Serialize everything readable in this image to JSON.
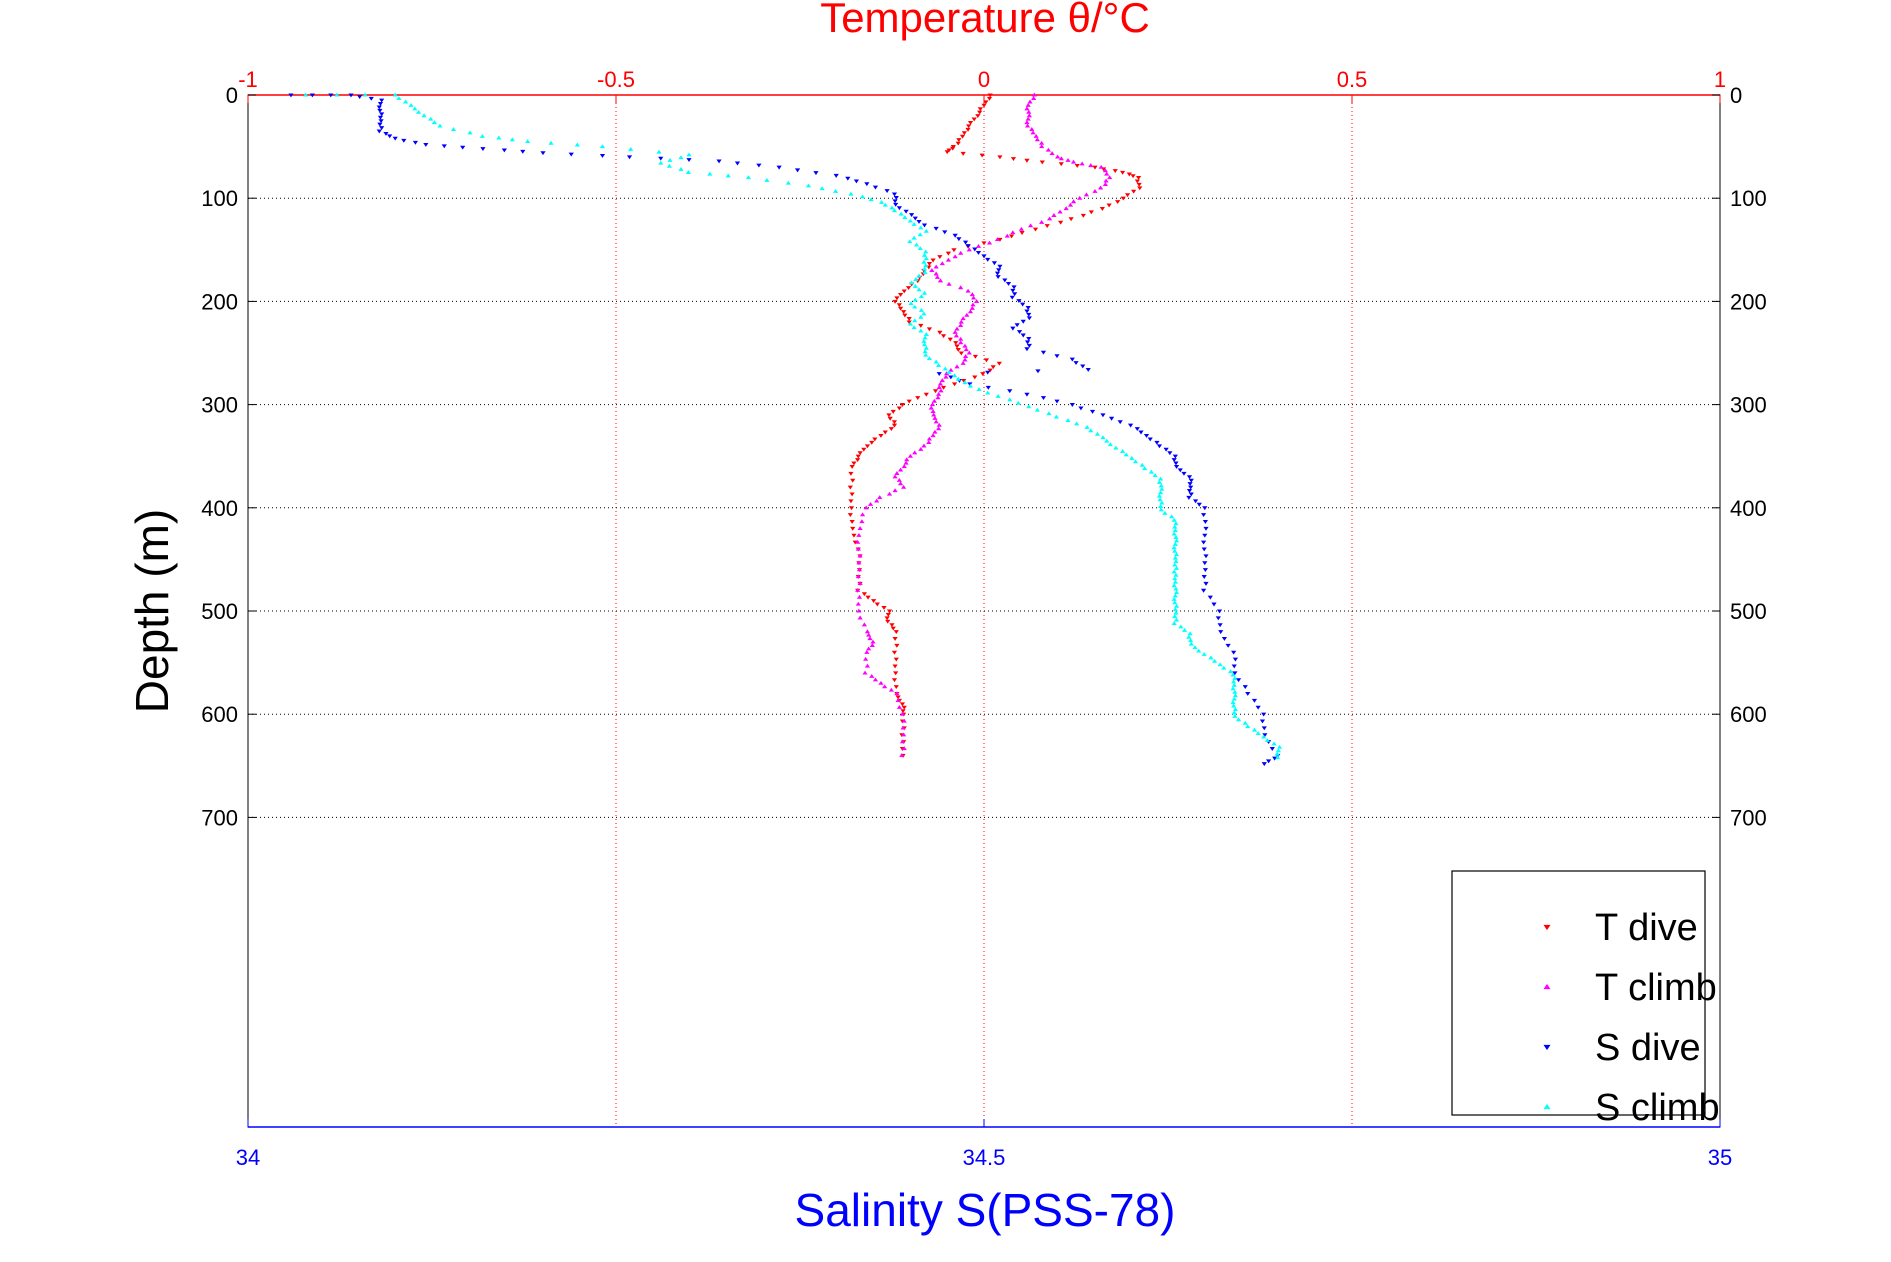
{
  "chart_data": {
    "type": "scatter",
    "title": "Temperature θ/°C",
    "top_axis": {
      "label": "Temperature θ/°C",
      "range": [
        -1,
        1
      ],
      "ticks": [
        -1,
        -0.5,
        0,
        0.5,
        1
      ],
      "tick_labels": [
        "-1",
        "-0.5",
        "0",
        "0.5",
        "1"
      ],
      "color": "#ff0000",
      "grid": true
    },
    "bottom_axis": {
      "label": "Salinity S(PSS-78)",
      "range": [
        34,
        35
      ],
      "ticks": [
        34,
        34.5,
        35
      ],
      "tick_labels": [
        "34",
        "34.5",
        "35"
      ],
      "color": "#0000ff"
    },
    "y_axis": {
      "label": "Depth (m)",
      "range": [
        0,
        1000
      ],
      "reversed": true,
      "ticks": [
        0,
        100,
        200,
        300,
        400,
        500,
        600,
        700
      ],
      "tick_labels": [
        "0",
        "100",
        "200",
        "300",
        "400",
        "500",
        "600",
        "700"
      ],
      "grid": true
    },
    "legend": {
      "position": "bottom-right"
    },
    "series": [
      {
        "name": "T dive",
        "axis": "top",
        "marker": "triangle-down",
        "color": "#ff0000",
        "points": [
          [
            0.01,
            0
          ],
          [
            0.0,
            10
          ],
          [
            -0.01,
            20
          ],
          [
            -0.02,
            30
          ],
          [
            -0.03,
            40
          ],
          [
            -0.04,
            50
          ],
          [
            -0.05,
            55
          ],
          [
            0.02,
            60
          ],
          [
            0.08,
            65
          ],
          [
            0.15,
            70
          ],
          [
            0.19,
            75
          ],
          [
            0.21,
            80
          ],
          [
            0.21,
            90
          ],
          [
            0.19,
            100
          ],
          [
            0.16,
            110
          ],
          [
            0.12,
            120
          ],
          [
            0.07,
            130
          ],
          [
            0.02,
            140
          ],
          [
            -0.04,
            150
          ],
          [
            -0.07,
            160
          ],
          [
            -0.08,
            170
          ],
          [
            -0.09,
            180
          ],
          [
            -0.11,
            190
          ],
          [
            -0.12,
            200
          ],
          [
            -0.11,
            210
          ],
          [
            -0.1,
            220
          ],
          [
            -0.06,
            230
          ],
          [
            -0.04,
            240
          ],
          [
            -0.03,
            250
          ],
          [
            0.02,
            260
          ],
          [
            0.0,
            270
          ],
          [
            -0.04,
            280
          ],
          [
            -0.08,
            290
          ],
          [
            -0.11,
            300
          ],
          [
            -0.13,
            310
          ],
          [
            -0.12,
            320
          ],
          [
            -0.14,
            330
          ],
          [
            -0.16,
            340
          ],
          [
            -0.17,
            350
          ],
          [
            -0.18,
            360
          ],
          [
            -0.18,
            380
          ],
          [
            -0.18,
            400
          ],
          [
            -0.18,
            420
          ],
          [
            -0.17,
            440
          ],
          [
            -0.17,
            460
          ],
          [
            -0.17,
            480
          ],
          [
            -0.15,
            490
          ],
          [
            -0.13,
            500
          ],
          [
            -0.13,
            510
          ],
          [
            -0.12,
            520
          ],
          [
            -0.12,
            540
          ],
          [
            -0.12,
            560
          ],
          [
            -0.12,
            580
          ],
          [
            -0.11,
            590
          ],
          [
            -0.11,
            600
          ],
          [
            -0.11,
            620
          ],
          [
            -0.11,
            640
          ]
        ]
      },
      {
        "name": "T climb",
        "axis": "top",
        "marker": "triangle-up",
        "color": "#ff00ff",
        "points": [
          [
            0.07,
            0
          ],
          [
            0.06,
            10
          ],
          [
            0.06,
            20
          ],
          [
            0.06,
            30
          ],
          [
            0.07,
            40
          ],
          [
            0.08,
            50
          ],
          [
            0.1,
            60
          ],
          [
            0.12,
            65
          ],
          [
            0.16,
            70
          ],
          [
            0.17,
            80
          ],
          [
            0.16,
            90
          ],
          [
            0.13,
            100
          ],
          [
            0.11,
            110
          ],
          [
            0.09,
            120
          ],
          [
            0.05,
            130
          ],
          [
            0.02,
            140
          ],
          [
            -0.02,
            150
          ],
          [
            -0.05,
            160
          ],
          [
            -0.07,
            170
          ],
          [
            -0.06,
            180
          ],
          [
            -0.02,
            190
          ],
          [
            -0.01,
            200
          ],
          [
            -0.02,
            210
          ],
          [
            -0.03,
            220
          ],
          [
            -0.04,
            230
          ],
          [
            -0.03,
            240
          ],
          [
            -0.02,
            250
          ],
          [
            -0.03,
            260
          ],
          [
            -0.05,
            270
          ],
          [
            -0.06,
            280
          ],
          [
            -0.06,
            290
          ],
          [
            -0.07,
            300
          ],
          [
            -0.07,
            310
          ],
          [
            -0.06,
            320
          ],
          [
            -0.07,
            330
          ],
          [
            -0.08,
            340
          ],
          [
            -0.1,
            350
          ],
          [
            -0.11,
            360
          ],
          [
            -0.12,
            370
          ],
          [
            -0.11,
            380
          ],
          [
            -0.14,
            390
          ],
          [
            -0.16,
            400
          ],
          [
            -0.17,
            420
          ],
          [
            -0.17,
            440
          ],
          [
            -0.17,
            460
          ],
          [
            -0.17,
            480
          ],
          [
            -0.17,
            500
          ],
          [
            -0.16,
            520
          ],
          [
            -0.15,
            530
          ],
          [
            -0.16,
            540
          ],
          [
            -0.16,
            560
          ],
          [
            -0.14,
            570
          ],
          [
            -0.12,
            580
          ],
          [
            -0.11,
            600
          ],
          [
            -0.11,
            620
          ],
          [
            -0.11,
            640
          ]
        ]
      },
      {
        "name": "S dive",
        "axis": "bottom",
        "marker": "triangle-down",
        "color": "#0000ff",
        "points": [
          [
            34.03,
            0
          ],
          [
            34.07,
            0
          ],
          [
            34.09,
            5
          ],
          [
            34.09,
            15
          ],
          [
            34.09,
            25
          ],
          [
            34.09,
            35
          ],
          [
            34.1,
            42
          ],
          [
            34.12,
            48
          ],
          [
            34.16,
            52
          ],
          [
            34.2,
            56
          ],
          [
            34.26,
            60
          ],
          [
            34.32,
            64
          ],
          [
            34.36,
            70
          ],
          [
            34.4,
            78
          ],
          [
            34.42,
            86
          ],
          [
            34.44,
            96
          ],
          [
            34.44,
            106
          ],
          [
            34.45,
            116
          ],
          [
            34.46,
            126
          ],
          [
            34.48,
            136
          ],
          [
            34.49,
            146
          ],
          [
            34.5,
            156
          ],
          [
            34.51,
            166
          ],
          [
            34.51,
            176
          ],
          [
            34.52,
            186
          ],
          [
            34.52,
            196
          ],
          [
            34.53,
            206
          ],
          [
            34.53,
            216
          ],
          [
            34.52,
            226
          ],
          [
            34.53,
            236
          ],
          [
            34.53,
            246
          ],
          [
            34.56,
            256
          ],
          [
            34.57,
            266
          ],
          [
            34.47,
            270
          ],
          [
            34.49,
            280
          ],
          [
            34.53,
            290
          ],
          [
            34.56,
            300
          ],
          [
            34.58,
            310
          ],
          [
            34.6,
            320
          ],
          [
            34.61,
            330
          ],
          [
            34.62,
            340
          ],
          [
            34.63,
            350
          ],
          [
            34.63,
            360
          ],
          [
            34.64,
            370
          ],
          [
            34.64,
            380
          ],
          [
            34.64,
            390
          ],
          [
            34.65,
            400
          ],
          [
            34.65,
            420
          ],
          [
            34.65,
            440
          ],
          [
            34.65,
            460
          ],
          [
            34.65,
            480
          ],
          [
            34.66,
            500
          ],
          [
            34.66,
            520
          ],
          [
            34.67,
            540
          ],
          [
            34.67,
            560
          ],
          [
            34.68,
            580
          ],
          [
            34.69,
            600
          ],
          [
            34.69,
            620
          ],
          [
            34.7,
            640
          ],
          [
            34.69,
            648
          ]
        ]
      },
      {
        "name": "S climb",
        "axis": "bottom",
        "marker": "triangle-up",
        "color": "#00ffff",
        "points": [
          [
            34.04,
            0
          ],
          [
            34.1,
            0
          ],
          [
            34.11,
            10
          ],
          [
            34.12,
            20
          ],
          [
            34.13,
            30
          ],
          [
            34.16,
            40
          ],
          [
            34.19,
            45
          ],
          [
            34.24,
            50
          ],
          [
            34.3,
            58
          ],
          [
            34.28,
            66
          ],
          [
            34.3,
            75
          ],
          [
            34.34,
            80
          ],
          [
            34.38,
            88
          ],
          [
            34.41,
            96
          ],
          [
            34.43,
            104
          ],
          [
            34.44,
            112
          ],
          [
            34.45,
            122
          ],
          [
            34.46,
            132
          ],
          [
            34.45,
            142
          ],
          [
            34.46,
            152
          ],
          [
            34.46,
            162
          ],
          [
            34.46,
            172
          ],
          [
            34.45,
            182
          ],
          [
            34.46,
            192
          ],
          [
            34.45,
            202
          ],
          [
            34.46,
            212
          ],
          [
            34.45,
            222
          ],
          [
            34.46,
            232
          ],
          [
            34.46,
            242
          ],
          [
            34.46,
            252
          ],
          [
            34.47,
            262
          ],
          [
            34.48,
            272
          ],
          [
            34.49,
            282
          ],
          [
            34.51,
            292
          ],
          [
            34.53,
            302
          ],
          [
            34.55,
            312
          ],
          [
            34.57,
            322
          ],
          [
            34.58,
            332
          ],
          [
            34.59,
            342
          ],
          [
            34.6,
            352
          ],
          [
            34.61,
            362
          ],
          [
            34.62,
            372
          ],
          [
            34.62,
            382
          ],
          [
            34.62,
            392
          ],
          [
            34.62,
            402
          ],
          [
            34.63,
            412
          ],
          [
            34.63,
            422
          ],
          [
            34.63,
            432
          ],
          [
            34.63,
            442
          ],
          [
            34.63,
            452
          ],
          [
            34.63,
            462
          ],
          [
            34.63,
            472
          ],
          [
            34.63,
            482
          ],
          [
            34.63,
            492
          ],
          [
            34.63,
            502
          ],
          [
            34.63,
            512
          ],
          [
            34.64,
            522
          ],
          [
            34.64,
            532
          ],
          [
            34.65,
            542
          ],
          [
            34.66,
            552
          ],
          [
            34.67,
            562
          ],
          [
            34.67,
            572
          ],
          [
            34.67,
            582
          ],
          [
            34.67,
            592
          ],
          [
            34.67,
            602
          ],
          [
            34.68,
            612
          ],
          [
            34.69,
            622
          ],
          [
            34.7,
            632
          ],
          [
            34.7,
            642
          ]
        ]
      }
    ]
  }
}
